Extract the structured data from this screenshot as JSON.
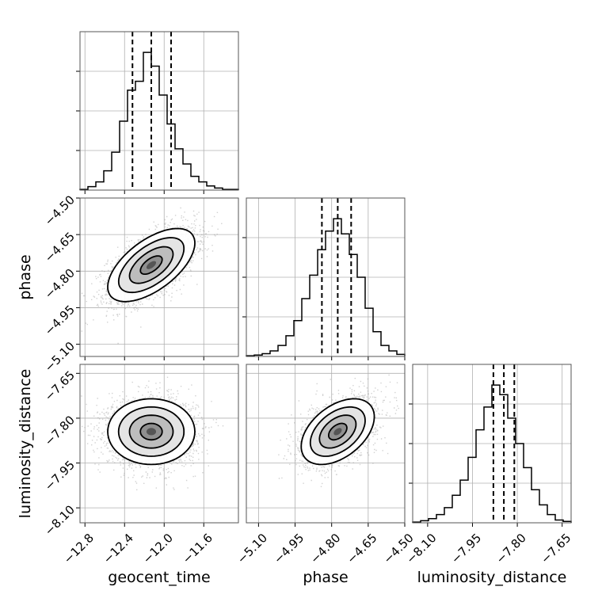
{
  "chart_data": {
    "type": "corner",
    "parameters": [
      "geocent_time",
      "phase",
      "luminosity_distance"
    ],
    "xlabels": [
      "geocent_time",
      "phase",
      "luminosity_distance"
    ],
    "ylabels": [
      "phase",
      "luminosity_distance"
    ],
    "ranges": {
      "geocent_time": [
        -12.85,
        -11.25
      ],
      "phase": [
        -5.15,
        -4.5
      ],
      "luminosity_distance": [
        -8.15,
        -7.62
      ]
    },
    "ticks": {
      "geocent_time": [
        -12.8,
        -12.4,
        -12.0,
        -11.6
      ],
      "phase": [
        -5.1,
        -4.95,
        -4.8,
        -4.65,
        -4.5
      ],
      "luminosity_distance": [
        -8.1,
        -7.95,
        -7.8,
        -7.65
      ]
    },
    "tick_labels": {
      "geocent_time": [
        "−12.8",
        "−12.4",
        "−12.0",
        "−11.6"
      ],
      "phase": [
        "−5.10",
        "−4.95",
        "−4.80",
        "−4.65",
        "−4.50"
      ],
      "luminosity_distance": [
        "−8.10",
        "−7.95",
        "−7.80",
        "−7.65"
      ]
    },
    "quantiles": {
      "geocent_time": [
        -12.32,
        -12.13,
        -11.93
      ],
      "phase": [
        -4.84,
        -4.775,
        -4.72
      ],
      "luminosity_distance": [
        -7.88,
        -7.845,
        -7.81
      ]
    },
    "histograms": {
      "geocent_time": {
        "bin_edges": [
          -12.85,
          -12.77,
          -12.69,
          -12.61,
          -12.53,
          -12.45,
          -12.37,
          -12.29,
          -12.21,
          -12.13,
          -12.05,
          -11.97,
          -11.89,
          -11.81,
          -11.73,
          -11.65,
          -11.57,
          -11.49,
          -11.41,
          -11.33,
          -11.25
        ],
        "counts": [
          1,
          5,
          12,
          28,
          55,
          100,
          145,
          158,
          200,
          180,
          138,
          96,
          60,
          38,
          20,
          12,
          6,
          3,
          1,
          1
        ]
      },
      "phase": {
        "bin_edges": [
          -5.15,
          -5.1175,
          -5.085,
          -5.0525,
          -5.02,
          -4.9875,
          -4.955,
          -4.9225,
          -4.89,
          -4.8575,
          -4.825,
          -4.7925,
          -4.76,
          -4.7275,
          -4.695,
          -4.6625,
          -4.63,
          -4.5975,
          -4.565,
          -4.5325,
          -4.5
        ],
        "counts": [
          1,
          2,
          4,
          8,
          16,
          30,
          52,
          84,
          118,
          155,
          182,
          200,
          178,
          148,
          115,
          70,
          36,
          16,
          8,
          3
        ]
      },
      "luminosity_distance": {
        "bin_edges": [
          -8.15,
          -8.1235,
          -8.097,
          -8.0705,
          -8.044,
          -8.0175,
          -7.991,
          -7.9645,
          -7.938,
          -7.9115,
          -7.885,
          -7.8585,
          -7.832,
          -7.8055,
          -7.779,
          -7.7525,
          -7.726,
          -7.6995,
          -7.673,
          -7.6465,
          -7.62
        ],
        "counts": [
          1,
          3,
          6,
          12,
          22,
          40,
          62,
          95,
          135,
          168,
          200,
          186,
          152,
          115,
          80,
          48,
          26,
          12,
          4,
          2
        ]
      }
    },
    "scatter_2d": [
      {
        "x": "geocent_time",
        "y": "phase",
        "mean": [
          -12.13,
          -4.775
        ],
        "sd": [
          0.22,
          0.075
        ],
        "correlation": 0.6,
        "samples": 2800
      },
      {
        "x": "geocent_time",
        "y": "luminosity_distance",
        "mean": [
          -12.13,
          -7.845
        ],
        "sd": [
          0.22,
          0.055
        ],
        "correlation": 0.0,
        "samples": 2800
      },
      {
        "x": "phase",
        "y": "luminosity_distance",
        "mean": [
          -4.775,
          -7.845
        ],
        "sd": [
          0.075,
          0.055
        ],
        "correlation": 0.45,
        "samples": 2800
      }
    ],
    "contour_levels_sigma": [
      0.5,
      1.0,
      1.5,
      2.0
    ],
    "grid": true
  }
}
